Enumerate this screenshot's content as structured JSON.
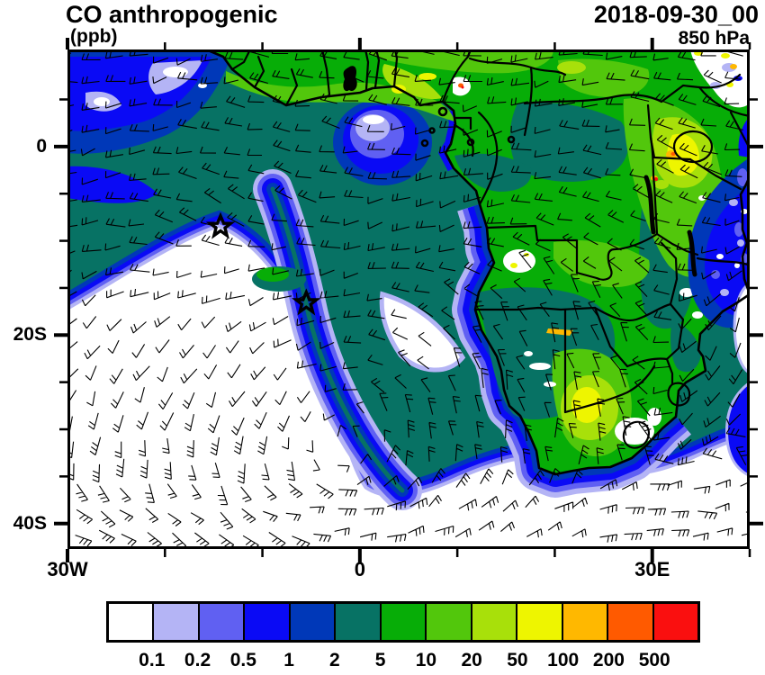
{
  "header": {
    "title": "CO anthropogenic",
    "units_label": "(ppb)",
    "datetime": "2018-09-30_00",
    "level_label": "850 hPa"
  },
  "chart_data": {
    "type": "heatmap",
    "variable": "CO anthropogenic",
    "units": "ppb",
    "datetime": "2018-09-30_00",
    "pressure_level": "850 hPa",
    "region": "Africa and South Atlantic",
    "extent": {
      "lon_min": -30,
      "lon_max": 40,
      "lat_min": -42.7,
      "lat_max": 10.3
    },
    "contour_levels": [
      0.1,
      0.2,
      0.5,
      1,
      2,
      5,
      10,
      20,
      50,
      100,
      200,
      500
    ],
    "palette": [
      "#FFFFFF",
      "#B4B4F5",
      "#6060F2",
      "#0A0AF5",
      "#0038B8",
      "#077264",
      "#07AD07",
      "#52C70C",
      "#A8E00A",
      "#EEF500",
      "#FFB800",
      "#FF5A00",
      "#FA0F0F"
    ],
    "colorbar_labels": [
      "0.1",
      "0.2",
      "0.5",
      "1",
      "2",
      "5",
      "10",
      "20",
      "50",
      "100",
      "200",
      "500"
    ],
    "x_axis": {
      "major": [
        {
          "lon": -30,
          "label": "30W"
        },
        {
          "lon": 0,
          "label": "0"
        },
        {
          "lon": 30,
          "label": "30E"
        }
      ],
      "minor_lon": [
        -20,
        -10,
        10,
        20,
        40
      ]
    },
    "y_axis": {
      "major": [
        {
          "lat": 0,
          "label": "0"
        },
        {
          "lat": -20,
          "label": "20S"
        },
        {
          "lat": -40,
          "label": "40S"
        }
      ],
      "minor_lat": [
        5,
        -5,
        -10,
        -15,
        -25,
        -30,
        -35
      ]
    },
    "overlays": [
      "filled CO contours",
      "wind barbs",
      "coastlines",
      "country borders"
    ],
    "markers": [
      {
        "type": "star",
        "lon": -14.3,
        "lat": -8.5
      },
      {
        "type": "star",
        "lon": -5.5,
        "lat": -16.6
      }
    ]
  }
}
